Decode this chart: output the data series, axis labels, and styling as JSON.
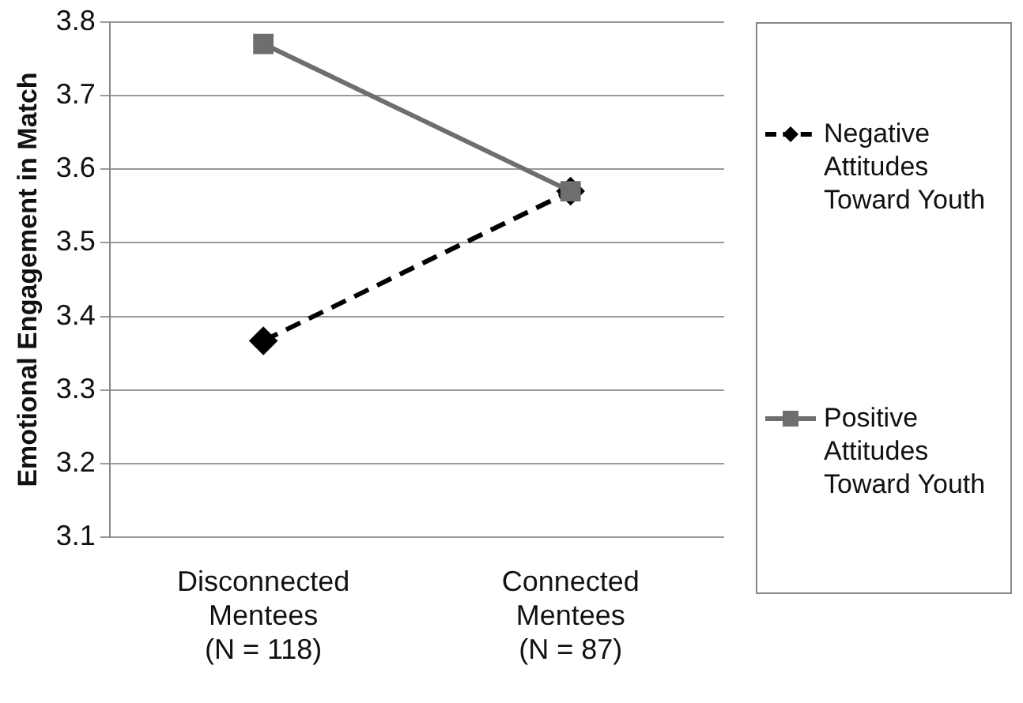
{
  "chart_data": {
    "type": "line",
    "ylabel": "Emotional Engagement in Match",
    "categories": [
      "Disconnected Mentees (N = 118)",
      "Connected Mentees (N = 87)"
    ],
    "series": [
      {
        "name": "Negative Attitudes Toward Youth",
        "color": "#000000",
        "values": [
          3.367,
          3.57
        ],
        "marker": "diamond",
        "line_style": "dashed"
      },
      {
        "name": "Positive Attitudes Toward Youth",
        "color": "#6e6e6e",
        "values": [
          3.77,
          3.57
        ],
        "marker": "square",
        "line_style": "solid"
      }
    ],
    "ylim": [
      3.1,
      3.8
    ],
    "yticks": [
      3.1,
      3.2,
      3.3,
      3.4,
      3.5,
      3.6,
      3.7,
      3.8
    ],
    "grid": "y",
    "legend": "right"
  }
}
